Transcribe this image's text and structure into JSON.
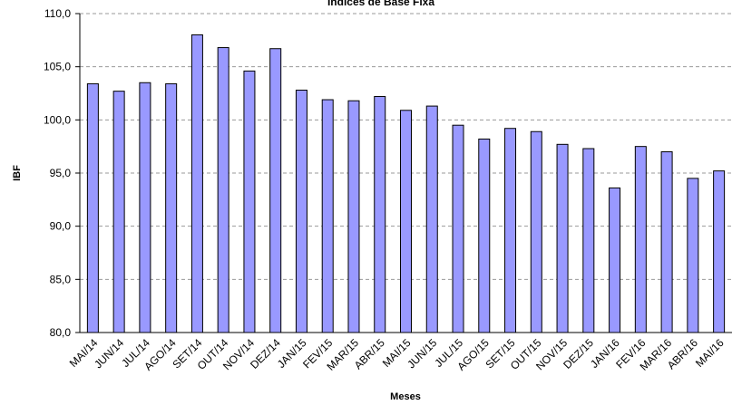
{
  "chart_data": {
    "type": "bar",
    "title": "Índices de Base Fixa",
    "x_label": "Meses",
    "y_label": "IBF",
    "categories": [
      "MAI/14",
      "JUN/14",
      "JUL/14",
      "AGO/14",
      "SET/14",
      "OUT/14",
      "NOV/14",
      "DEZ/14",
      "JAN/15",
      "FEV/15",
      "MAR/15",
      "ABR/15",
      "MAI/15",
      "JUN/15",
      "JUL/15",
      "AGO/15",
      "SET/15",
      "OUT/15",
      "NOV/15",
      "DEZ/15",
      "JAN/16",
      "FEV/16",
      "MAR/16",
      "ABR/16",
      "MAI/16"
    ],
    "values": [
      103.4,
      102.7,
      103.5,
      103.4,
      108.0,
      106.8,
      104.6,
      106.7,
      102.8,
      101.9,
      101.8,
      102.2,
      100.9,
      101.3,
      99.5,
      98.2,
      99.2,
      98.9,
      97.7,
      97.3,
      93.6,
      97.5,
      97.0,
      94.5,
      95.2
    ],
    "color": "#9999ff",
    "ylim": [
      80,
      110
    ],
    "yticks": [
      {
        "value": 80,
        "label": "80,0"
      },
      {
        "value": 85,
        "label": "85,0"
      },
      {
        "value": 90,
        "label": "90,0"
      },
      {
        "value": 95,
        "label": "95,0"
      },
      {
        "value": 100,
        "label": "100,0"
      },
      {
        "value": 105,
        "label": "105,0"
      },
      {
        "value": 110,
        "label": "110,0"
      }
    ],
    "grid": true
  }
}
